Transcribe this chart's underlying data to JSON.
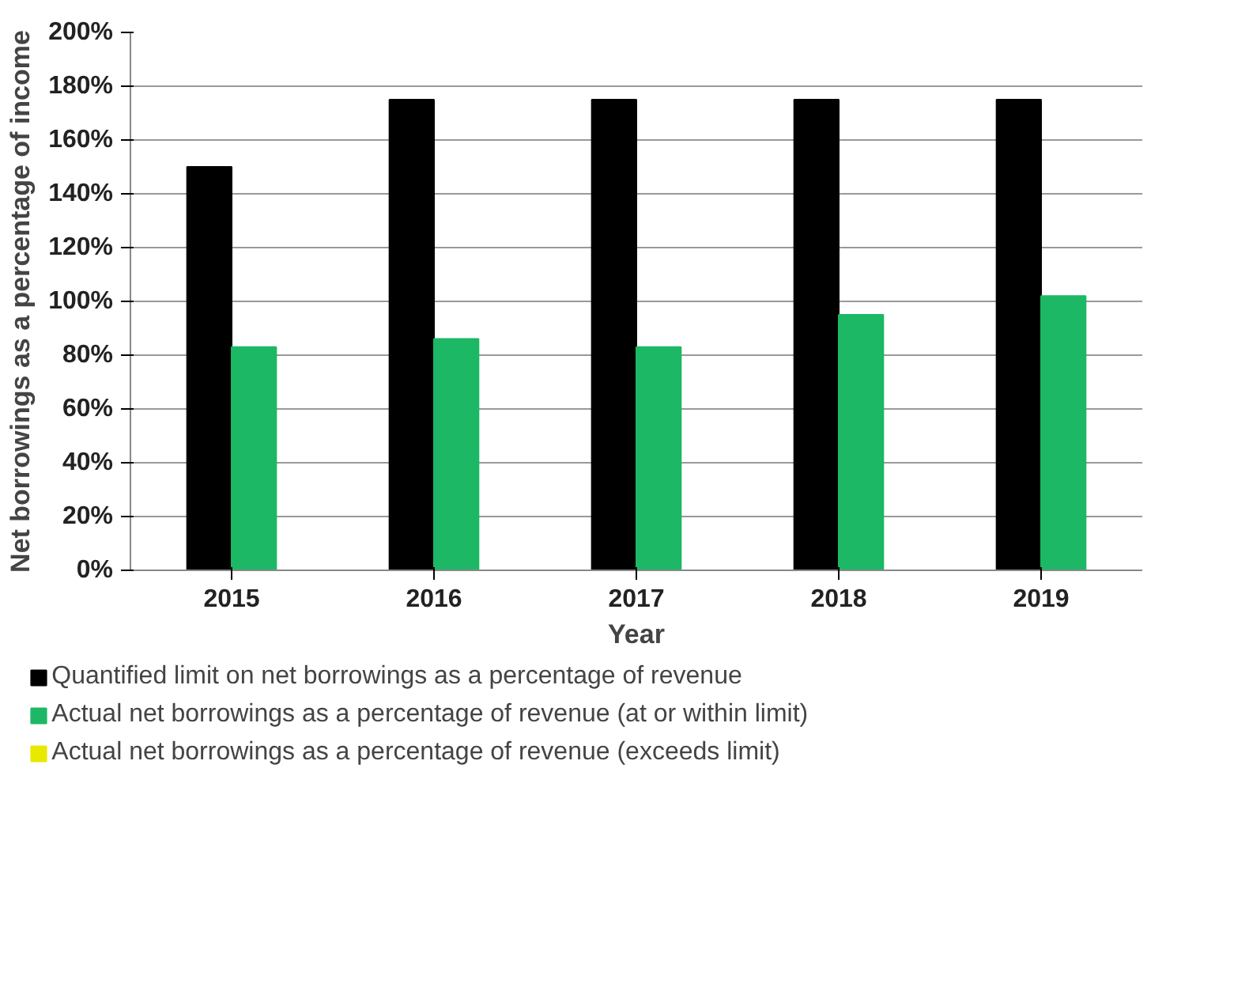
{
  "chart_data": {
    "type": "bar",
    "xlabel": "Year",
    "ylabel": "Net borrowings as a percentage of income",
    "categories": [
      "2015",
      "2016",
      "2017",
      "2018",
      "2019"
    ],
    "series": [
      {
        "name": "Quantified limit on net borrowings as a percentage of revenue",
        "color": "#000000",
        "values": [
          150,
          175,
          175,
          175,
          175
        ]
      },
      {
        "name": "Actual net borrowings as a percentage of revenue (at or within limit)",
        "color": "#1cb865",
        "values": [
          83,
          86,
          83,
          95,
          102
        ]
      },
      {
        "name": "Actual net borrowings as a percentage of revenue (exceeds limit)",
        "color": "#e8e800",
        "values": [
          null,
          null,
          null,
          null,
          null
        ]
      }
    ],
    "ylim": [
      0,
      200
    ],
    "yticks": [
      {
        "value": 0,
        "label": "0%"
      },
      {
        "value": 20,
        "label": "20%"
      },
      {
        "value": 40,
        "label": "40%"
      },
      {
        "value": 60,
        "label": "60%"
      },
      {
        "value": 80,
        "label": "80%"
      },
      {
        "value": 100,
        "label": "100%"
      },
      {
        "value": 120,
        "label": "120%"
      },
      {
        "value": 140,
        "label": "140%"
      },
      {
        "value": 160,
        "label": "160%"
      },
      {
        "value": 180,
        "label": "180%"
      },
      {
        "value": 200,
        "label": "200%"
      }
    ],
    "grid": "y",
    "legend": "bottom"
  }
}
